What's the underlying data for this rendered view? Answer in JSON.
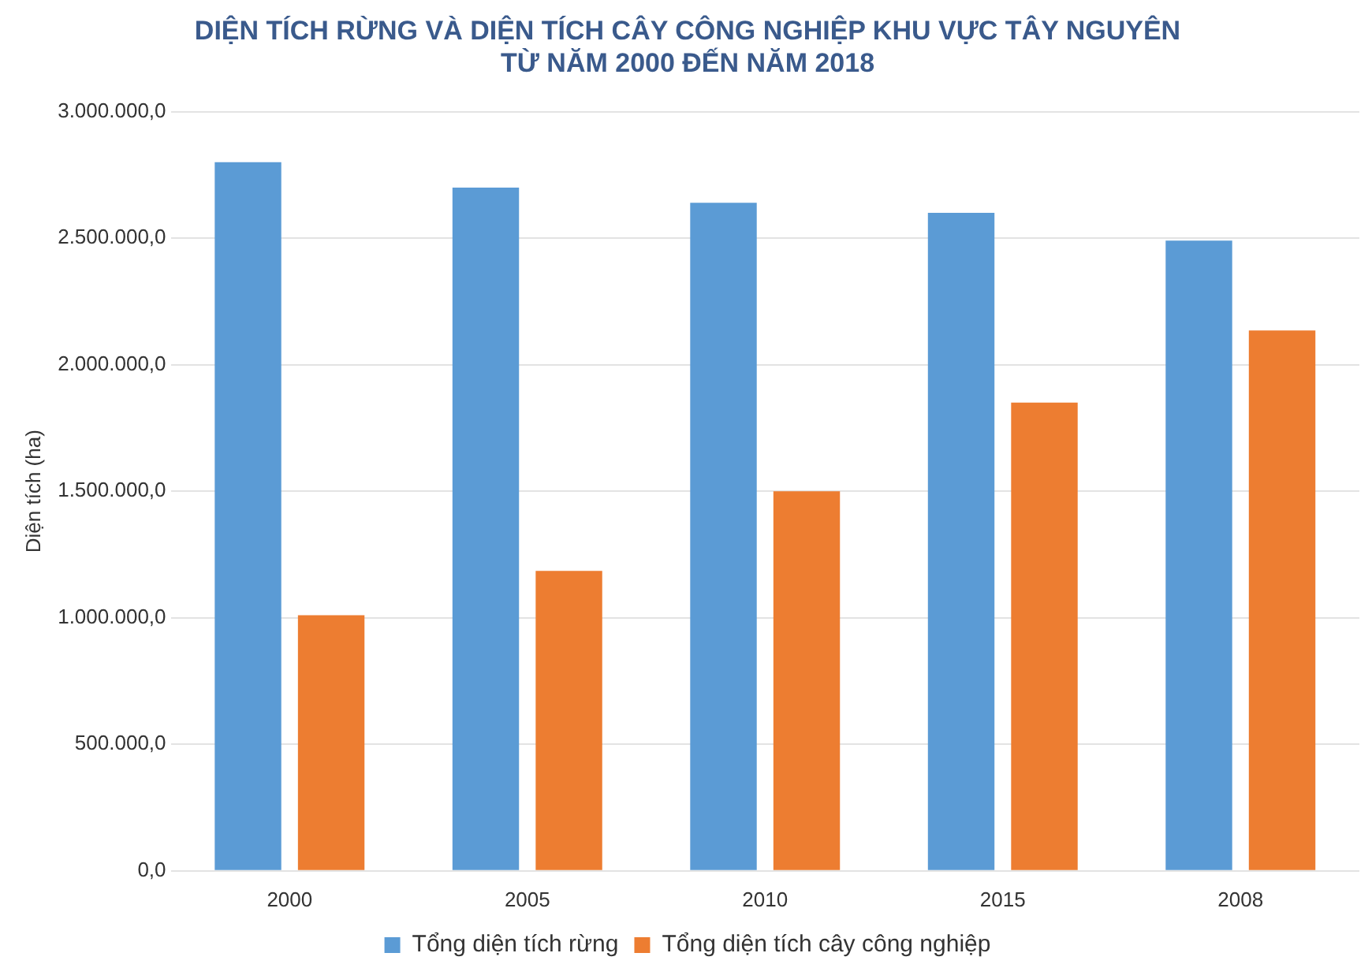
{
  "chart_data": {
    "type": "bar",
    "title": [
      "DIỆN TÍCH RỪNG VÀ DIỆN TÍCH CÂY CÔNG NGHIỆP KHU VỰC TÂY NGUYÊN",
      "TỪ NĂM 2000 ĐẾN NĂM 2018"
    ],
    "ylabel": "Diện tích (ha)",
    "categories": [
      "2000",
      "2005",
      "2010",
      "2015",
      "2008"
    ],
    "series": [
      {
        "name": "Tổng diện tích rừng",
        "color": "#5b9bd5",
        "values": [
          2800000,
          2700000,
          2640000,
          2600000,
          2490000
        ]
      },
      {
        "name": "Tổng diện tích cây công nghiệp",
        "color": "#ed7d31",
        "values": [
          1010000,
          1185000,
          1500000,
          1850000,
          2135000
        ]
      }
    ],
    "ylim": [
      0,
      3000000
    ],
    "yticks": [
      {
        "value": 0,
        "label": "0,0"
      },
      {
        "value": 500000,
        "label": "500.000,0"
      },
      {
        "value": 1000000,
        "label": "1.000.000,0"
      },
      {
        "value": 1500000,
        "label": "1.500.000,0"
      },
      {
        "value": 2000000,
        "label": "2.000.000,0"
      },
      {
        "value": 2500000,
        "label": "2.500.000,0"
      },
      {
        "value": 3000000,
        "label": "3.000.000,0"
      }
    ],
    "grid": "y",
    "legend": "bottom"
  }
}
